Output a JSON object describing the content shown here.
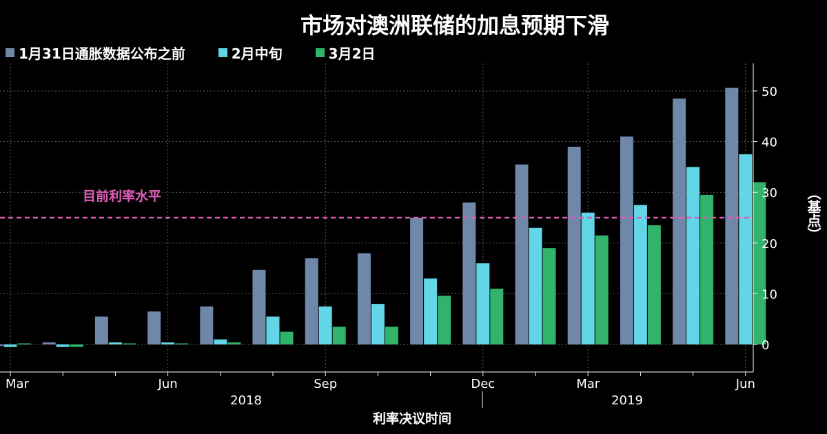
{
  "chart_data": {
    "type": "bar",
    "title": "市场对澳洲联储的加息预期下滑",
    "xlabel": "利率决议时间",
    "ylabel": "（基点）",
    "ylim": [
      -5,
      55
    ],
    "yticks": [
      0,
      10,
      20,
      30,
      40,
      50
    ],
    "grid": true,
    "legend_position": "top-left",
    "x_tick_labels": [
      {
        "index": 0,
        "label": "Mar"
      },
      {
        "index": 3,
        "label": "Jun"
      },
      {
        "index": 6,
        "label": "Sep"
      },
      {
        "index": 9,
        "label": "Dec"
      },
      {
        "index": 11,
        "label": "Mar"
      },
      {
        "index": 14,
        "label": "Jun"
      }
    ],
    "year_labels": [
      {
        "label": "2018"
      },
      {
        "label": "2019"
      }
    ],
    "series": [
      {
        "name": "1月31日通胀数据公布之前",
        "color": "#6f87a8",
        "values": [
          -0.3,
          0.4,
          5.5,
          6.5,
          7.5,
          14.7,
          17,
          18,
          25,
          28,
          35.5,
          39,
          41,
          48.5,
          50.6
        ]
      },
      {
        "name": "2月中旬",
        "color": "#62d6e6",
        "values": [
          -0.5,
          -0.5,
          0.4,
          0.4,
          1,
          5.5,
          7.5,
          8,
          13,
          16,
          23,
          26,
          27.5,
          35,
          37.5
        ]
      },
      {
        "name": "3月2日",
        "color": "#31b36b",
        "values": [
          0.1,
          -0.5,
          0.1,
          0.1,
          0.4,
          2.5,
          3.5,
          3.5,
          9.6,
          11,
          19,
          21.5,
          23.5,
          29.5,
          32
        ]
      }
    ],
    "reference_line": {
      "value": 25,
      "label": "目前利率水平",
      "color": "#e25bb8"
    }
  }
}
